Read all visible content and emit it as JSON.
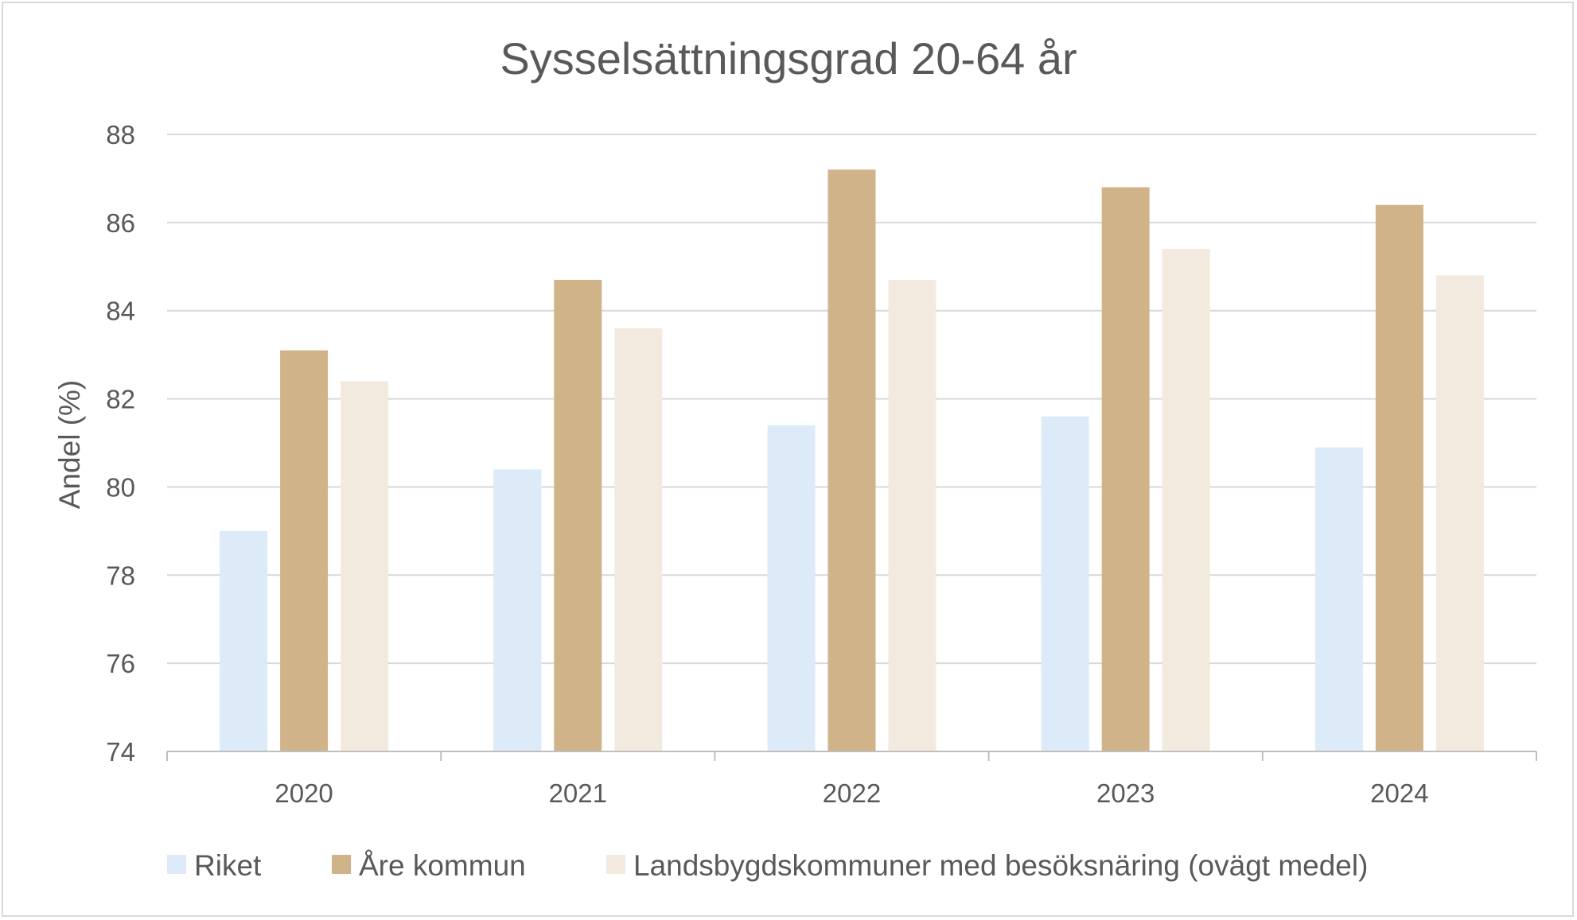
{
  "chart_data": {
    "type": "bar",
    "title": "Sysselsättningsgrad 20-64 år",
    "xlabel": "",
    "ylabel": "Andel (%)",
    "ylim": [
      74,
      88
    ],
    "yticks": [
      74,
      76,
      78,
      80,
      82,
      84,
      86,
      88
    ],
    "categories": [
      "2020",
      "2021",
      "2022",
      "2023",
      "2024"
    ],
    "grid": true,
    "legend_position": "bottom",
    "series": [
      {
        "name": "Riket",
        "color": "#ddeaf7",
        "values": [
          79.0,
          80.4,
          81.4,
          81.6,
          80.9
        ]
      },
      {
        "name": "Åre kommun",
        "color": "#d0b389",
        "values": [
          83.1,
          84.7,
          87.2,
          86.8,
          86.4
        ]
      },
      {
        "name": "Landsbygdskommuner med besöksnäring (ovägt medel)",
        "color": "#f3eadf",
        "values": [
          82.4,
          83.6,
          84.7,
          85.4,
          84.8
        ]
      }
    ]
  }
}
